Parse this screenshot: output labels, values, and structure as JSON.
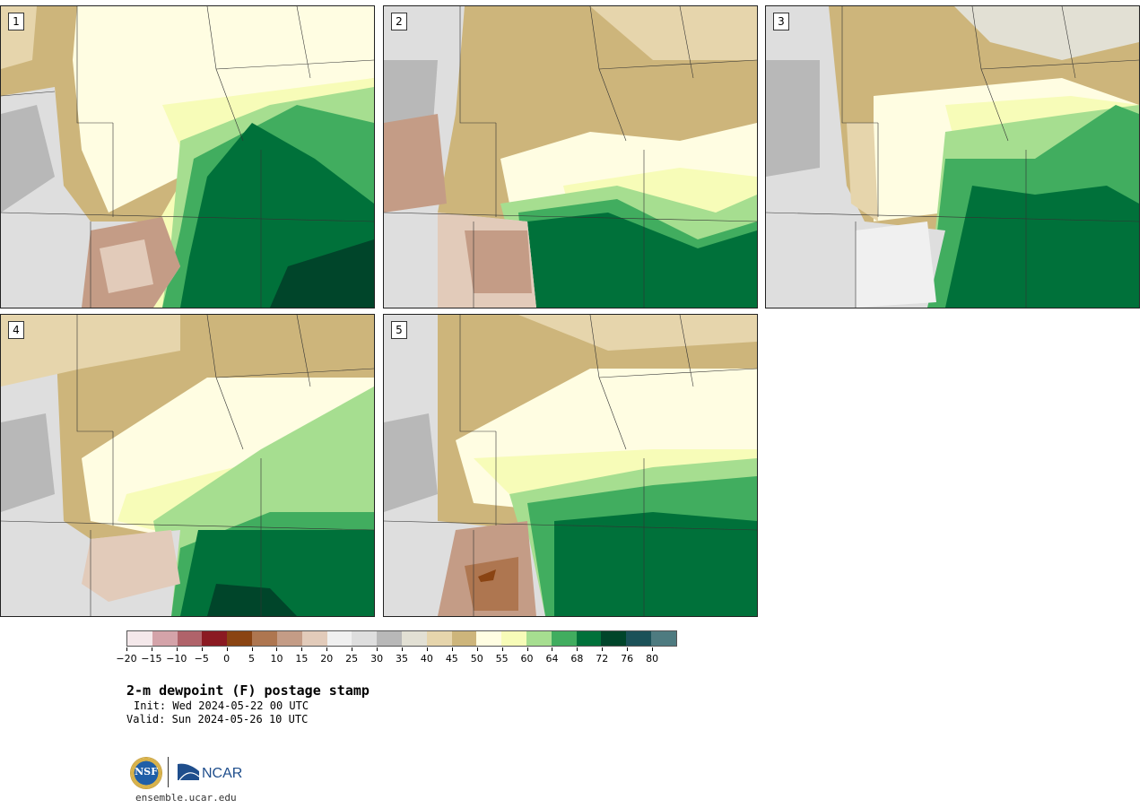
{
  "panels": [
    {
      "label": "1"
    },
    {
      "label": "2"
    },
    {
      "label": "3"
    },
    {
      "label": "4"
    },
    {
      "label": "5"
    }
  ],
  "colorbar": {
    "colors": [
      "#f4e8ea",
      "#d4a3a9",
      "#b0636a",
      "#8b1a22",
      "#8a4413",
      "#ae7650",
      "#c49c86",
      "#e2cbba",
      "#f0f0f0",
      "#dedede",
      "#b8b8b8",
      "#e2e0d4",
      "#e6d5ac",
      "#cdb57b",
      "#fffde2",
      "#f7fcb8",
      "#a6de90",
      "#41ad5f",
      "#00713a",
      "#00452a",
      "#1b5158",
      "#4e7b80"
    ],
    "tick_labels": [
      "−20",
      "−15",
      "−10",
      "−5",
      "0",
      "5",
      "10",
      "15",
      "20",
      "25",
      "30",
      "35",
      "40",
      "45",
      "50",
      "55",
      "60",
      "64",
      "68",
      "72",
      "76",
      "80"
    ]
  },
  "title": {
    "main": "2-m dewpoint (F) postage stamp",
    "init": "Init: Wed 2024-05-22 00 UTC",
    "valid": "Valid: Sun 2024-05-26 10 UTC"
  },
  "logos": {
    "nsf_text": "NSF",
    "ncar_text": "NCAR",
    "url": "ensemble.ucar.edu"
  }
}
